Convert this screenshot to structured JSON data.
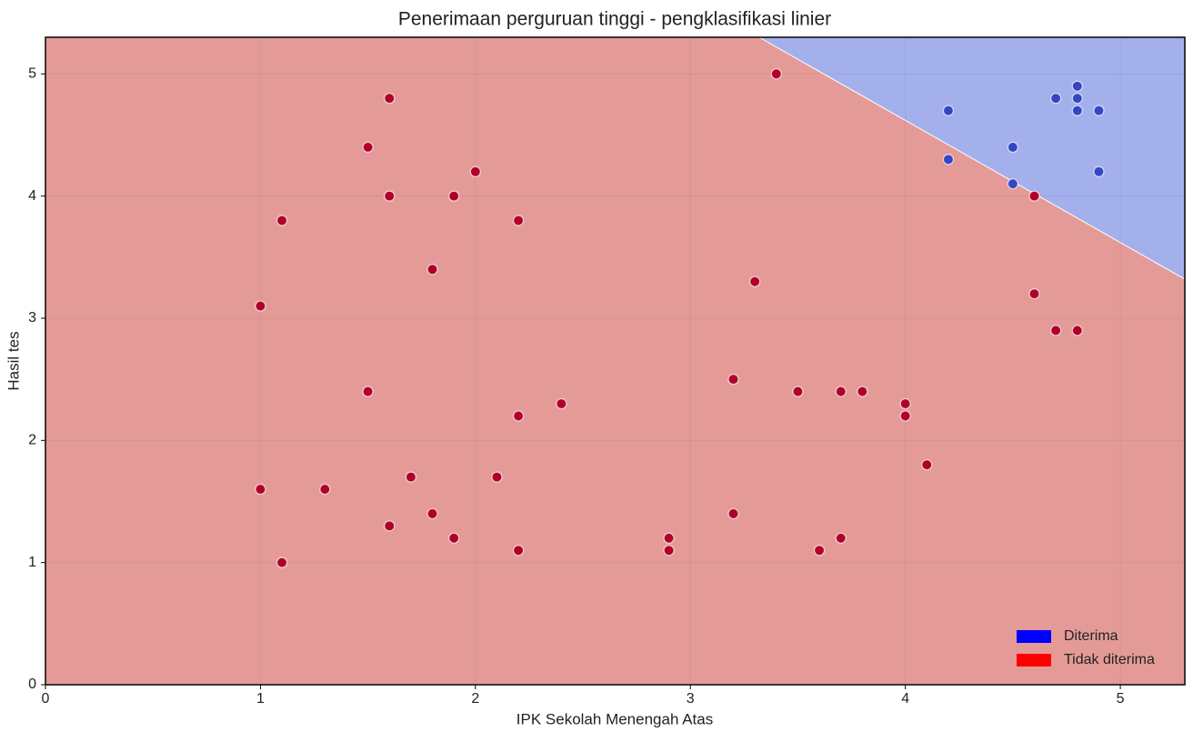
{
  "chart_data": {
    "type": "scatter",
    "title": "Penerimaan perguruan tinggi - pengklasifikasi linier",
    "xlabel": "IPK Sekolah Menengah Atas",
    "ylabel": "Hasil tes",
    "xlim": [
      0,
      5.3
    ],
    "ylim": [
      0,
      5.3
    ],
    "xticks": [
      0,
      1,
      2,
      3,
      4,
      5
    ],
    "yticks": [
      0,
      1,
      2,
      3,
      4,
      5
    ],
    "grid": true,
    "legend": "lower right",
    "decision_boundary": {
      "x": [
        3.32,
        5.3
      ],
      "y": [
        5.3,
        3.32
      ]
    },
    "series": [
      {
        "name": "Diterima",
        "color": "#3346c4",
        "legend_color": "#0000ff",
        "region_color": "#a3b0ec",
        "x": [
          4.2,
          4.2,
          4.5,
          4.5,
          4.7,
          4.8,
          4.8,
          4.8,
          4.9,
          4.9
        ],
        "y": [
          4.7,
          4.3,
          4.4,
          4.1,
          4.8,
          4.9,
          4.8,
          4.7,
          4.7,
          4.2
        ]
      },
      {
        "name": "Tidak diterima",
        "color": "#b0002a",
        "legend_color": "#ff0000",
        "region_color": "#e49b98",
        "x": [
          3.4,
          1.6,
          1.5,
          2.0,
          1.6,
          1.9,
          1.1,
          2.2,
          1.8,
          1.0,
          3.3,
          4.6,
          4.6,
          4.7,
          4.8,
          3.2,
          1.5,
          2.4,
          2.2,
          3.5,
          3.7,
          3.8,
          4.0,
          4.0,
          4.1,
          1.0,
          1.3,
          1.7,
          2.1,
          1.6,
          1.8,
          1.9,
          2.2,
          1.1,
          2.9,
          2.9,
          3.2,
          3.6,
          3.7
        ],
        "y": [
          5.0,
          4.8,
          4.4,
          4.2,
          4.0,
          4.0,
          3.8,
          3.8,
          3.4,
          3.1,
          3.3,
          4.0,
          3.2,
          2.9,
          2.9,
          2.5,
          2.4,
          2.3,
          2.2,
          2.4,
          2.4,
          2.4,
          2.3,
          2.2,
          1.8,
          1.6,
          1.6,
          1.7,
          1.7,
          1.3,
          1.4,
          1.2,
          1.1,
          1.0,
          1.2,
          1.1,
          1.4,
          1.1,
          1.2
        ]
      }
    ]
  }
}
